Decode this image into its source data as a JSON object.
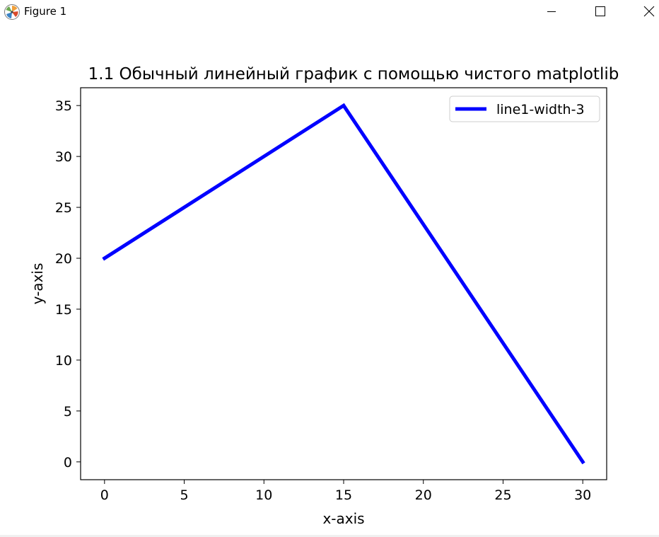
{
  "window": {
    "title": "Figure 1",
    "app_icon": "matplotlib-logo-icon",
    "controls": {
      "minimize": "minimize-icon",
      "maximize": "maximize-icon",
      "close": "close-icon"
    }
  },
  "chart_data": {
    "type": "line",
    "title": "1.1 Обычный линейный график с помощью чистого matplotlib",
    "xlabel": "x-axis",
    "ylabel": "y-axis",
    "x": [
      0,
      15,
      30
    ],
    "series": [
      {
        "name": "line1-width-3",
        "values": [
          20,
          35,
          0
        ],
        "color": "#0000ff",
        "linewidth": 3
      }
    ],
    "xlim": [
      -1.5,
      31.5
    ],
    "ylim": [
      -1.75,
      36.75
    ],
    "xticks": [
      0,
      5,
      10,
      15,
      20,
      25,
      30
    ],
    "yticks": [
      0,
      5,
      10,
      15,
      20,
      25,
      30,
      35
    ],
    "grid": false,
    "legend_position": "upper right"
  }
}
